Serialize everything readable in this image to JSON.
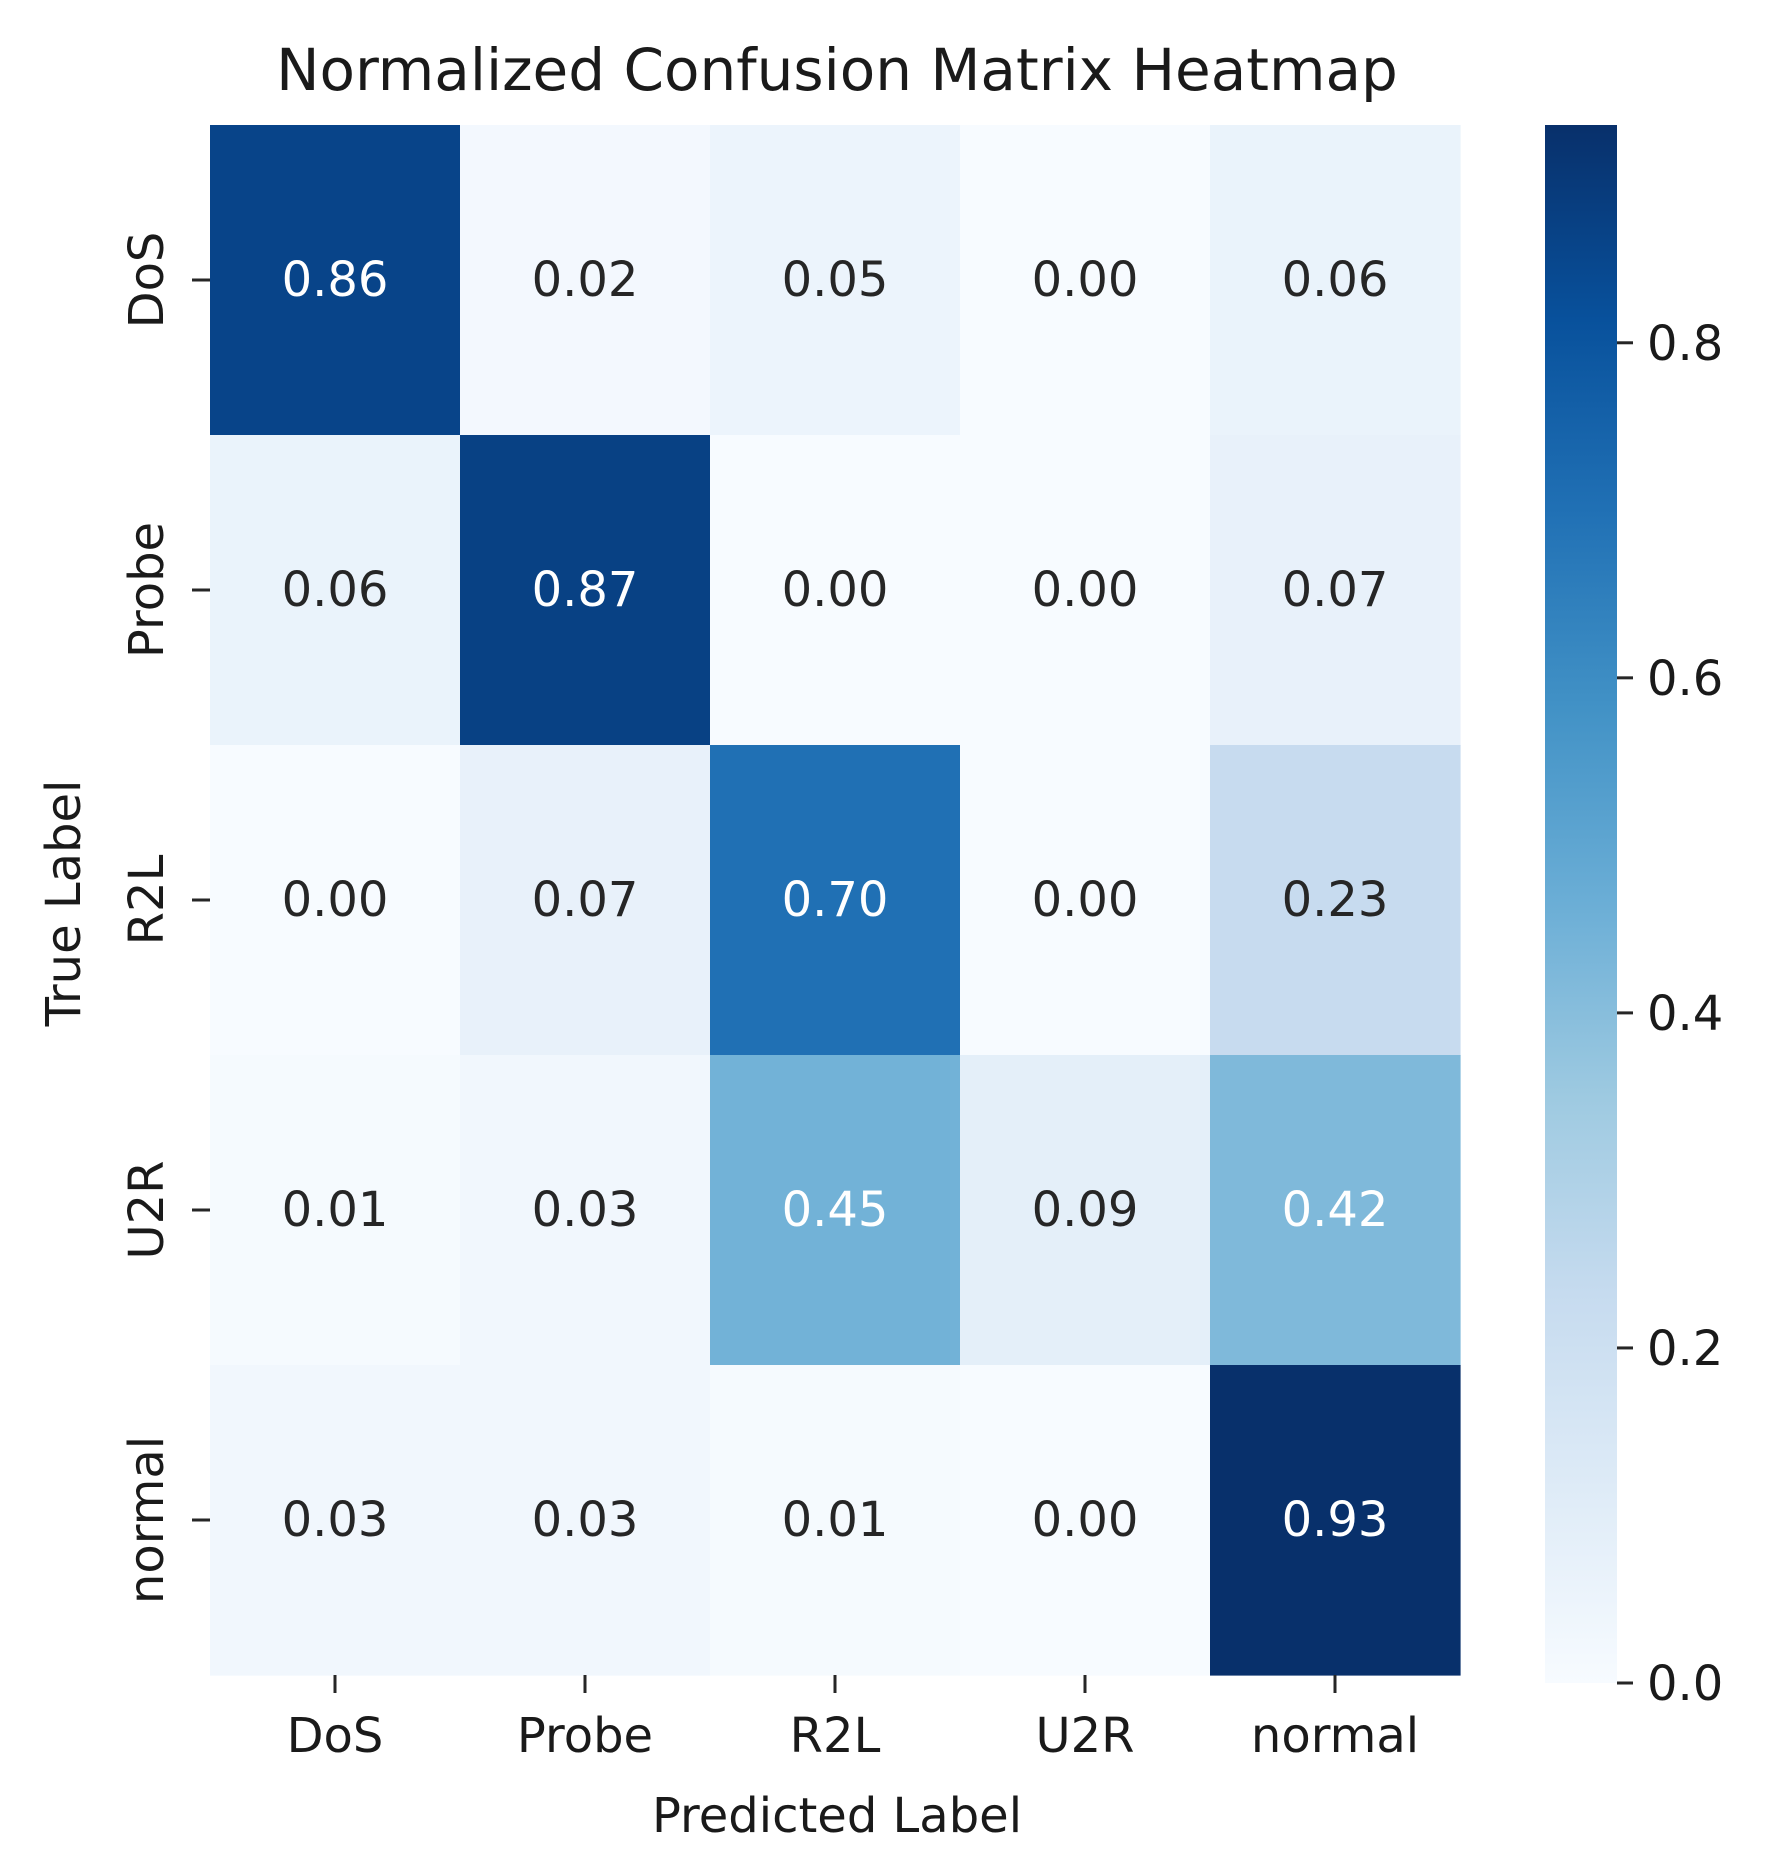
{
  "chart_data": {
    "type": "heatmap",
    "title": "Normalized Confusion Matrix Heatmap",
    "xlabel": "Predicted Label",
    "ylabel": "True Label",
    "x_categories": [
      "DoS",
      "Probe",
      "R2L",
      "U2R",
      "normal"
    ],
    "y_categories": [
      "DoS",
      "Probe",
      "R2L",
      "U2R",
      "normal"
    ],
    "values": [
      [
        0.86,
        0.02,
        0.05,
        0.0,
        0.06
      ],
      [
        0.06,
        0.87,
        0.0,
        0.0,
        0.07
      ],
      [
        0.0,
        0.07,
        0.7,
        0.0,
        0.23
      ],
      [
        0.01,
        0.03,
        0.45,
        0.09,
        0.42
      ],
      [
        0.03,
        0.03,
        0.01,
        0.0,
        0.93
      ]
    ],
    "cell_labels": [
      [
        "0.86",
        "0.02",
        "0.05",
        "0.00",
        "0.06"
      ],
      [
        "0.06",
        "0.87",
        "0.00",
        "0.00",
        "0.07"
      ],
      [
        "0.00",
        "0.07",
        "0.70",
        "0.00",
        "0.23"
      ],
      [
        "0.01",
        "0.03",
        "0.45",
        "0.09",
        "0.42"
      ],
      [
        "0.03",
        "0.03",
        "0.01",
        "0.00",
        "0.93"
      ]
    ],
    "colorbar": {
      "range": [
        0,
        0.93
      ],
      "ticks": [
        0.0,
        0.2,
        0.4,
        0.6,
        0.8
      ],
      "tick_labels": [
        "0.0",
        "0.2",
        "0.4",
        "0.6",
        "0.8"
      ]
    },
    "colormap": "Blues",
    "colormap_stops": [
      "#f7fbff",
      "#deebf7",
      "#c6dbef",
      "#9ecae1",
      "#6baed6",
      "#4292c6",
      "#2171b5",
      "#08519c",
      "#08306b"
    ],
    "text_color_dark": "#262626",
    "text_color_light": "#ffffff",
    "grid": false
  }
}
